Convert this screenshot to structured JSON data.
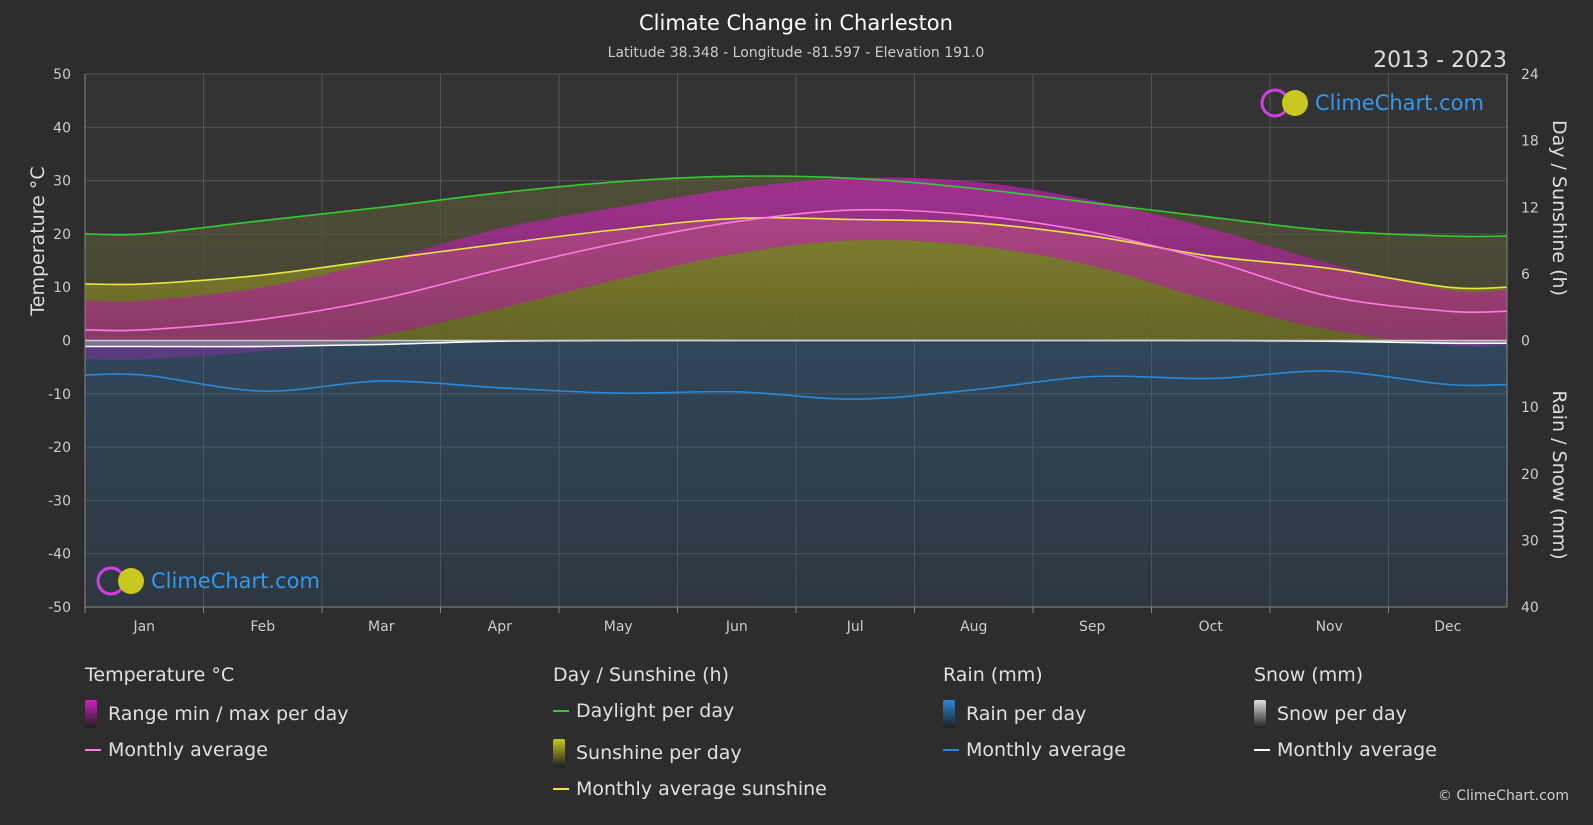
{
  "title": "Climate Change in Charleston",
  "subtitle": "Latitude 38.348 - Longitude -81.597 - Elevation 191.0",
  "period": "2013 - 2023",
  "brand": "ClimeChart.com",
  "copyright": "© ClimeChart.com",
  "colors": {
    "background": "#2d2d2d",
    "daylight": "#33cc33",
    "sunshine_avg": "#e8e840",
    "temp_avg": "#ff7ae0",
    "temp_range": "#d020c0",
    "rain": "#2a88d8",
    "snow": "#ffffff",
    "brand_text": "#3399ee"
  },
  "chart_data": {
    "type": "area",
    "categories": [
      "Jan",
      "Feb",
      "Mar",
      "Apr",
      "May",
      "Jun",
      "Jul",
      "Aug",
      "Sep",
      "Oct",
      "Nov",
      "Dec"
    ],
    "axes": {
      "left": {
        "label": "Temperature °C",
        "min": -50,
        "max": 50,
        "ticks": [
          50,
          40,
          30,
          20,
          10,
          0,
          -10,
          -20,
          -30,
          -40,
          -50
        ]
      },
      "right_top": {
        "label": "Day / Sunshine (h)",
        "min": 0,
        "max": 24,
        "ticks": [
          24,
          18,
          12,
          6,
          0
        ]
      },
      "right_bottom": {
        "label": "Rain / Snow (mm)",
        "min": 0,
        "max": 40,
        "ticks": [
          0,
          10,
          20,
          30,
          40
        ]
      }
    },
    "grid": true,
    "series": [
      {
        "name": "Daylight per day",
        "axis": "hours",
        "values": [
          9.6,
          10.8,
          12.0,
          13.3,
          14.3,
          14.8,
          14.6,
          13.7,
          12.4,
          11.1,
          9.9,
          9.4
        ]
      },
      {
        "name": "Monthly average sunshine",
        "axis": "hours",
        "values": [
          5.1,
          5.9,
          7.3,
          8.7,
          10.0,
          11.0,
          10.9,
          10.6,
          9.4,
          7.6,
          6.5,
          4.8
        ]
      },
      {
        "name": "Monthly average",
        "group": "Temperature °C",
        "axis": "temperature",
        "values": [
          2.0,
          4.0,
          7.8,
          13.3,
          18.3,
          22.3,
          24.5,
          23.5,
          20.3,
          15.0,
          8.3,
          5.5
        ]
      },
      {
        "name": "Temperature max per day",
        "axis": "temperature",
        "values": [
          7.5,
          10.0,
          15.0,
          21.0,
          25.0,
          28.5,
          30.5,
          29.8,
          26.3,
          21.0,
          14.5,
          9.5
        ]
      },
      {
        "name": "Temperature min per day",
        "axis": "temperature",
        "values": [
          -3.5,
          -2.0,
          1.0,
          6.0,
          11.5,
          16.3,
          18.8,
          17.8,
          14.0,
          7.5,
          2.0,
          -1.0
        ]
      },
      {
        "name": "Monthly average",
        "group": "Rain (mm)",
        "axis": "precip_mm",
        "values": [
          5.2,
          7.6,
          6.1,
          7.1,
          7.9,
          7.7,
          8.8,
          7.4,
          5.4,
          5.7,
          4.6,
          6.6
        ]
      },
      {
        "name": "Monthly average",
        "group": "Snow (mm)",
        "axis": "precip_mm",
        "values": [
          0.9,
          0.9,
          0.6,
          0.1,
          0.0,
          0.0,
          0.0,
          0.0,
          0.0,
          0.0,
          0.1,
          0.4
        ]
      }
    ]
  },
  "legend": {
    "groups": [
      {
        "title": "Temperature °C",
        "items": [
          {
            "label": "Range min / max per day",
            "swatch": "box",
            "color": "#d020c0"
          },
          {
            "label": "Monthly average",
            "swatch": "line",
            "color": "#ff7ae0"
          }
        ]
      },
      {
        "title": "Day / Sunshine (h)",
        "items": [
          {
            "label": "Daylight per day",
            "swatch": "line",
            "color": "#33cc33"
          },
          {
            "label": "Sunshine per day",
            "swatch": "box",
            "color": "#c8c820"
          },
          {
            "label": "Monthly average sunshine",
            "swatch": "line",
            "color": "#e8e840"
          }
        ]
      },
      {
        "title": "Rain (mm)",
        "items": [
          {
            "label": "Rain per day",
            "swatch": "box",
            "color": "#2a88d8"
          },
          {
            "label": "Monthly average",
            "swatch": "line",
            "color": "#2a88d8"
          }
        ]
      },
      {
        "title": "Snow (mm)",
        "items": [
          {
            "label": "Snow per day",
            "swatch": "box",
            "color": "#e0e0e0"
          },
          {
            "label": "Monthly average",
            "swatch": "line",
            "color": "#ffffff"
          }
        ]
      }
    ]
  }
}
